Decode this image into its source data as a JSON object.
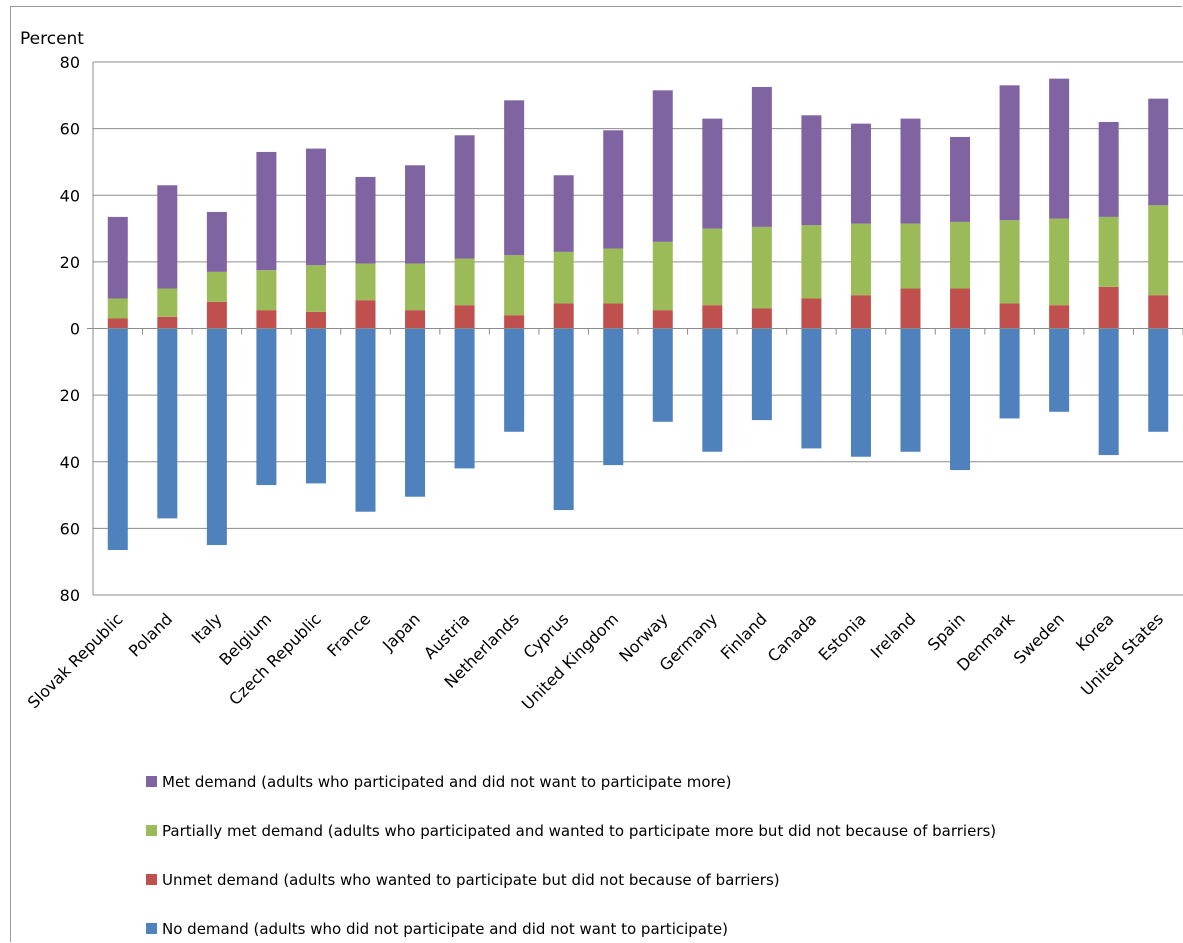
{
  "chart_data": {
    "type": "bar",
    "stacked": "diverging",
    "ylabel": "Percent",
    "ylim": [
      -80,
      80
    ],
    "yticks": [
      80,
      60,
      40,
      20,
      0,
      20,
      40,
      60,
      80
    ],
    "grid": true,
    "legend_position": "bottom",
    "categories": [
      "Slovak Republic",
      "Poland",
      "Italy",
      "Belgium",
      "Czech Republic",
      "France",
      "Japan",
      "Austria",
      "Netherlands",
      "Cyprus",
      "United Kingdom",
      "Norway",
      "Germany",
      "Finland",
      "Canada",
      "Estonia",
      "Ireland",
      "Spain",
      "Denmark",
      "Sweden",
      "Korea",
      "United States"
    ],
    "series": [
      {
        "name": "Met demand (adults who participated and did not want to participate more)",
        "color": "#8064a2",
        "direction": "up",
        "values": [
          24.5,
          31,
          18,
          35.5,
          35,
          26,
          29.5,
          37,
          46.5,
          23,
          35.5,
          45.5,
          33,
          42,
          33,
          30,
          31.5,
          25.5,
          40.5,
          42,
          28.5,
          32
        ]
      },
      {
        "name": "Partially met demand (adults who participated and wanted to participate more but did not because of barriers)",
        "color": "#9bbb59",
        "direction": "up",
        "values": [
          6,
          8.5,
          9,
          12,
          14,
          11,
          14,
          14,
          18,
          15.5,
          16.5,
          20.5,
          23,
          24.5,
          22,
          21.5,
          19.5,
          20,
          25,
          26,
          21,
          27
        ]
      },
      {
        "name": "Unmet demand (adults who wanted to participate but did not because of barriers)",
        "color": "#c0504d",
        "direction": "up",
        "values": [
          3,
          3.5,
          8,
          5.5,
          5,
          8.5,
          5.5,
          7,
          4,
          7.5,
          7.5,
          5.5,
          7,
          6,
          9,
          10,
          12,
          12,
          7.5,
          7,
          12.5,
          10
        ]
      },
      {
        "name": "No demand (adults who did not participate and did not want to participate)",
        "color": "#4f81bd",
        "direction": "down",
        "values": [
          66.5,
          57,
          65,
          47,
          46.5,
          55,
          50.5,
          42,
          31,
          54.5,
          41,
          28,
          37,
          27.5,
          36,
          38.5,
          37,
          42.5,
          27,
          25,
          38,
          31
        ]
      }
    ]
  }
}
